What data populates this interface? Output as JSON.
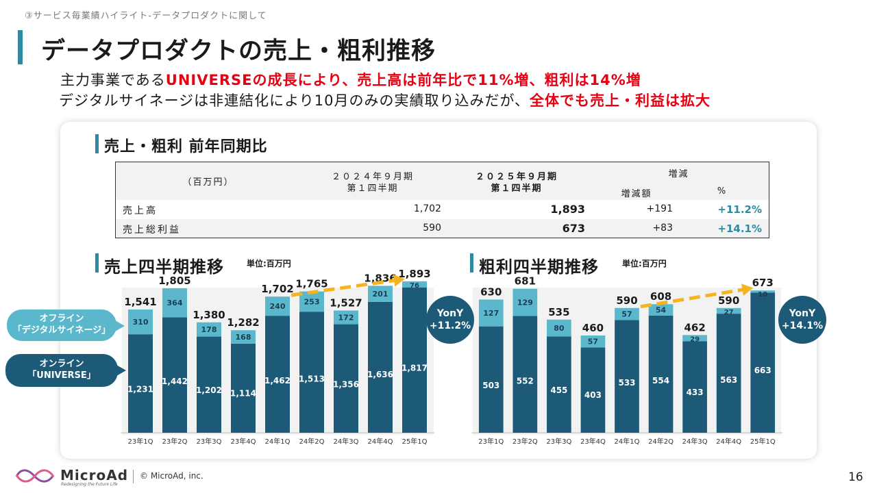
{
  "header": {
    "breadcrumb": "③サービス毎業績ハイライト-データプロダクトに関して",
    "title": "データプロダクトの売上・粗利推移",
    "line1": [
      {
        "text": "主力事業である",
        "red": false
      },
      {
        "text": "UNIVERSEの成長により、売上高は前年比で11%増、粗利は14%増",
        "red": true
      }
    ],
    "line2": [
      {
        "text": "デジタルサイネージは非連結化により10月のみの実績取り込みだが、",
        "red": false
      },
      {
        "text": "全体でも売上・利益は拡大",
        "red": true
      }
    ]
  },
  "yoy_section": {
    "title": "売上・粗利  前年同期比",
    "table": {
      "unit_label": "（百万円）",
      "col_2024": "２０２４年９月期",
      "col_2024_sub": "第１四半期",
      "col_2025": "２０２５年９月期",
      "col_2025_sub": "第１四半期",
      "col_change": "増減",
      "col_change_amount": "増減額",
      "col_change_pct": "%",
      "rows": [
        {
          "label": "売上高",
          "v2024": "1,702",
          "v2025": "1,893",
          "diff": "+191",
          "pct": "+11.2%"
        },
        {
          "label": "売上総利益",
          "v2024": "590",
          "v2025": "673",
          "diff": "+83",
          "pct": "+14.1%"
        }
      ]
    }
  },
  "legend": {
    "offline": "オフライン\n「デジタルサイネージ」",
    "online": "オンライン\n「UNIVERSE」"
  },
  "colors": {
    "online": "#1d5a78",
    "offline": "#5bb8cc",
    "arrow": "#f5b41e",
    "accent_bar": "#2e8aa0",
    "red": "#e60012"
  },
  "chart_data": [
    {
      "type": "bar",
      "stacked": true,
      "title": "売上四半期推移",
      "unit": "単位:百万円",
      "categories": [
        "23年1Q",
        "23年2Q",
        "23年3Q",
        "23年4Q",
        "24年1Q",
        "24年2Q",
        "24年3Q",
        "24年4Q",
        "25年1Q"
      ],
      "series": [
        {
          "name": "オンライン「UNIVERSE」",
          "values": [
            1231,
            1442,
            1202,
            1114,
            1462,
            1513,
            1356,
            1636,
            1817
          ]
        },
        {
          "name": "オフライン「デジタルサイネージ」",
          "values": [
            310,
            364,
            178,
            168,
            240,
            253,
            172,
            201,
            76
          ]
        }
      ],
      "series_labels": [
        [
          "1,231",
          "1,442",
          "1,202",
          "1,114",
          "1,462",
          "1,513",
          "1,356",
          "1,636",
          "1,817"
        ],
        [
          "310",
          "364",
          "178",
          "168",
          "240",
          "253",
          "172",
          "201",
          "76"
        ]
      ],
      "totals": [
        "1,541",
        "1,805",
        "1,380",
        "1,282",
        "1,702",
        "1,765",
        "1,527",
        "1,836",
        "1,893"
      ],
      "ylim": [
        0,
        1900
      ],
      "yony_label": "YonY",
      "yony_value": "+11.2%"
    },
    {
      "type": "bar",
      "stacked": true,
      "title": "粗利四半期推移",
      "unit": "単位:百万円",
      "categories": [
        "23年1Q",
        "23年2Q",
        "23年3Q",
        "23年4Q",
        "24年1Q",
        "24年2Q",
        "24年3Q",
        "24年4Q",
        "25年1Q"
      ],
      "series": [
        {
          "name": "オンライン「UNIVERSE」",
          "values": [
            503,
            552,
            455,
            403,
            533,
            554,
            433,
            563,
            663
          ]
        },
        {
          "name": "オフライン「デジタルサイネージ」",
          "values": [
            127,
            129,
            80,
            57,
            57,
            54,
            29,
            27,
            10
          ]
        }
      ],
      "series_labels": [
        [
          "503",
          "552",
          "455",
          "403",
          "533",
          "554",
          "433",
          "563",
          "663"
        ],
        [
          "127",
          "129",
          "80",
          "57",
          "57",
          "54",
          "29",
          "27",
          "10"
        ]
      ],
      "totals": [
        "630",
        "681",
        "535",
        "460",
        "590",
        "608",
        "462",
        "590",
        "673"
      ],
      "ylim": [
        0,
        680
      ],
      "yony_label": "YonY",
      "yony_value": "+14.1%"
    }
  ],
  "footer": {
    "brand": "MicroAd",
    "tagline": "Redesigning the Future Life",
    "copyright": "© MicroAd, inc.",
    "page_number": "16"
  }
}
